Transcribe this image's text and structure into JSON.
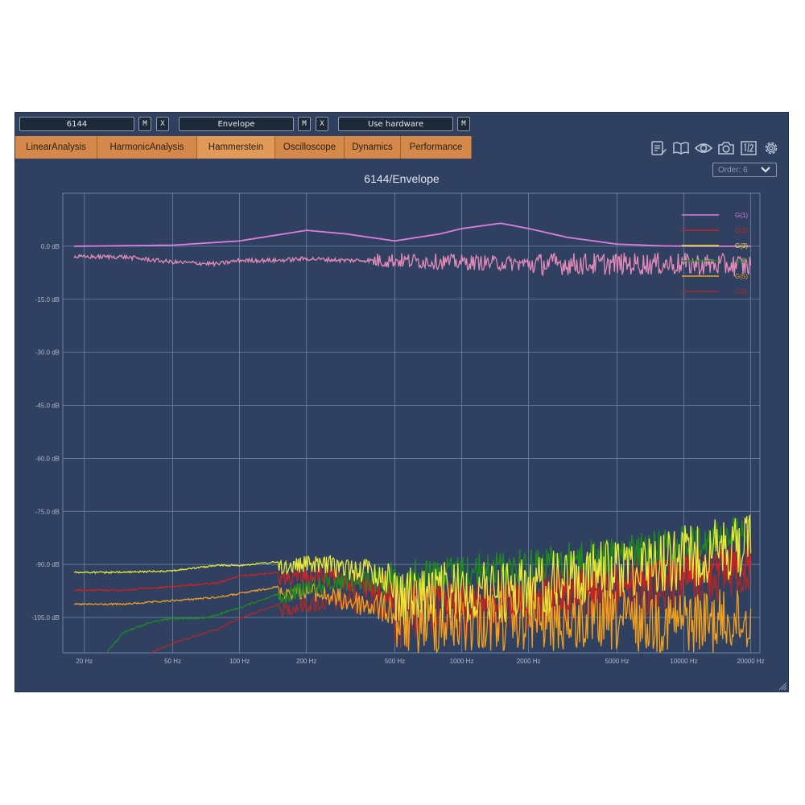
{
  "toolbar": {
    "field1": "6144",
    "field2": "Envelope",
    "field3": "Use hardware",
    "m_label": "M",
    "x_label": "X"
  },
  "tabs": [
    {
      "label": "LinearAnalysis"
    },
    {
      "label": "HarmonicAnalysis"
    },
    {
      "label": "Hammerstein",
      "active": true
    },
    {
      "label": "Oscilloscope"
    },
    {
      "label": "Dynamics"
    },
    {
      "label": "Performance"
    }
  ],
  "icons": [
    "notes-icon",
    "book-icon",
    "eye-icon",
    "camera-icon",
    "split-1-2-icon",
    "gear-icon"
  ],
  "order_select": {
    "label": "Order: 6"
  },
  "colors": {
    "background": "#2f4060",
    "grid": "#6a83a6",
    "tab": "#d4894a",
    "G1": "#e07ce0",
    "G2": "#cc2222",
    "G3": "#e8e83a",
    "G4": "#1f8a1f",
    "G5": "#f0a020",
    "G6": "#a82a2a"
  },
  "chart_data": {
    "type": "line",
    "title": "6144/Envelope",
    "x_scale": "log",
    "xlim": [
      16,
      22000
    ],
    "ylim": [
      -115,
      15
    ],
    "x_ticks": [
      {
        "value": 20,
        "label": "20 Hz"
      },
      {
        "value": 50,
        "label": "50 Hz"
      },
      {
        "value": 100,
        "label": "100 Hz"
      },
      {
        "value": 200,
        "label": "200 Hz"
      },
      {
        "value": 500,
        "label": "500 Hz"
      },
      {
        "value": 1000,
        "label": "1000 Hz"
      },
      {
        "value": 2000,
        "label": "2000 Hz"
      },
      {
        "value": 5000,
        "label": "5000 Hz"
      },
      {
        "value": 10000,
        "label": "10000 Hz"
      },
      {
        "value": 20000,
        "label": "20000 Hz"
      }
    ],
    "y_ticks": [
      {
        "value": 0,
        "label": "0.0 dB"
      },
      {
        "value": -15,
        "label": "-15.0 dB"
      },
      {
        "value": -30,
        "label": "-30.0 dB"
      },
      {
        "value": -45,
        "label": "-45.0 dB"
      },
      {
        "value": -60,
        "label": "-60.0 dB"
      },
      {
        "value": -75,
        "label": "-75.0 dB"
      },
      {
        "value": -90,
        "label": "-90.0 dB"
      },
      {
        "value": -105,
        "label": "-105.0 dB"
      }
    ],
    "legend_position": "top-right",
    "series": [
      {
        "name": "G(1)",
        "color": "#e07ce0",
        "x": [
          18,
          50,
          100,
          200,
          300,
          500,
          800,
          1000,
          1500,
          2000,
          3000,
          5000,
          8000,
          12000,
          20000
        ],
        "y": [
          0.0,
          0.3,
          1.5,
          4.5,
          3.5,
          1.5,
          3.5,
          5.0,
          6.5,
          5.0,
          2.5,
          0.6,
          0.1,
          0.0,
          0.0
        ]
      },
      {
        "name": "G(2)",
        "color": "#cc2222",
        "x": [
          18,
          30,
          50,
          80,
          100,
          150,
          200,
          300,
          500,
          1000,
          2000,
          5000,
          10000,
          20000
        ],
        "y": [
          -97,
          -97,
          -96,
          -95,
          -93,
          -92,
          -91,
          -91,
          -93,
          -95,
          -95,
          -90,
          -87,
          -84
        ]
      },
      {
        "name": "G(3)",
        "color": "#e8e83a",
        "x": [
          18,
          30,
          50,
          80,
          100,
          150,
          200,
          250,
          400,
          500,
          1000,
          2000,
          3000,
          5000,
          10000,
          20000
        ],
        "y": [
          -92,
          -92,
          -91.5,
          -90,
          -90,
          -89,
          -87.5,
          -87.5,
          -88,
          -90,
          -89,
          -88,
          -85,
          -82,
          -79,
          -75
        ]
      },
      {
        "name": "G(4)",
        "color": "#1f8a1f",
        "x": [
          18,
          25,
          30,
          40,
          50,
          70,
          100,
          150,
          200,
          300,
          500,
          1000,
          2000,
          5000,
          10000,
          20000
        ],
        "y": [
          -117,
          -115,
          -109,
          -106,
          -105,
          -105,
          -102,
          -98,
          -94,
          -91,
          -89,
          -87,
          -85,
          -82,
          -79,
          -75
        ]
      },
      {
        "name": "G(5)",
        "color": "#f0a020",
        "x": [
          18,
          30,
          50,
          80,
          100,
          150,
          200,
          300,
          500,
          1000,
          2000,
          5000,
          10000,
          20000
        ],
        "y": [
          -101,
          -101,
          -100,
          -99,
          -98,
          -96,
          -95,
          -97,
          -98,
          -97,
          -97,
          -97,
          -97,
          -97
        ]
      },
      {
        "name": "G(6)",
        "color": "#a82a2a",
        "x": [
          18,
          30,
          50,
          80,
          100,
          150,
          200,
          300,
          500,
          1000,
          2000,
          5000,
          10000,
          20000
        ],
        "y": [
          -120,
          -118,
          -112,
          -108,
          -105,
          -101,
          -99,
          -97,
          -96,
          -94,
          -92,
          -88,
          -85,
          -81
        ]
      },
      {
        "name": "",
        "color": "#e58ab8",
        "x": [
          18,
          30,
          50,
          80,
          100,
          150,
          200,
          300,
          500,
          1000,
          2000,
          5000,
          10000,
          20000
        ],
        "y": [
          -3.0,
          -3.0,
          -4.5,
          -5.0,
          -4.0,
          -4.0,
          -3.5,
          -4.0,
          -4.0,
          -4.5,
          -5.0,
          -5.0,
          -5.0,
          -5.5
        ]
      }
    ]
  }
}
